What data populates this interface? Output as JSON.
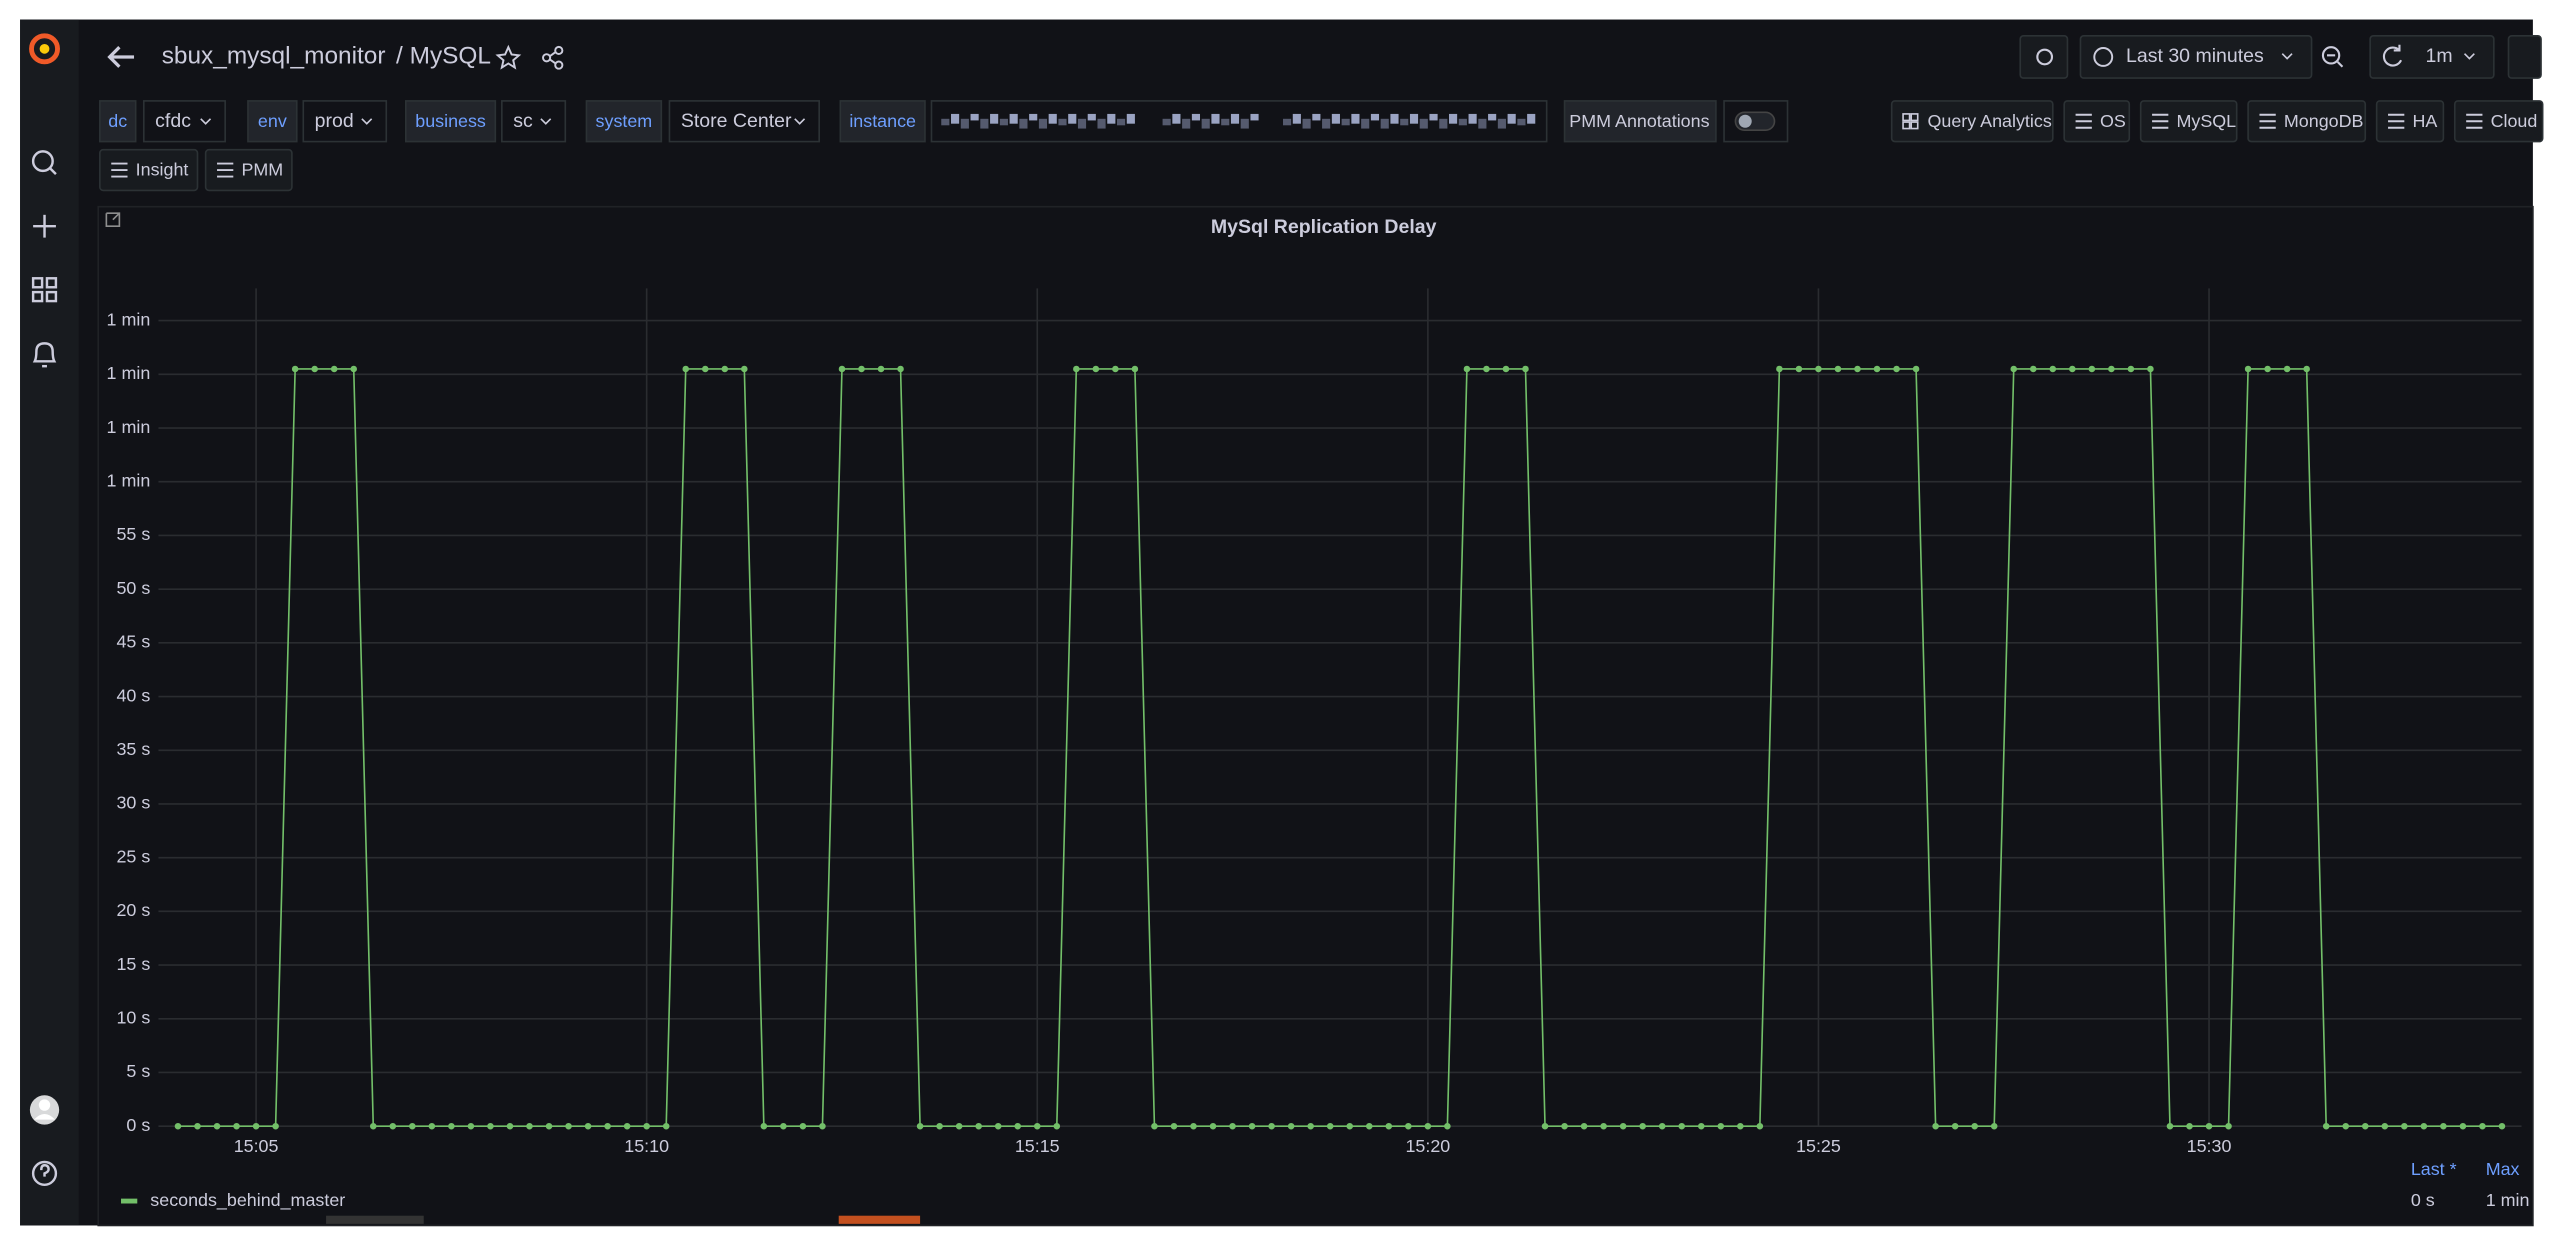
{
  "header": {
    "title": "sbux_mysql_monitor",
    "subtitle": "/ MySQL"
  },
  "time_picker": {
    "range": "Last 30 minutes",
    "refresh": "1m"
  },
  "variables": [
    {
      "label": "dc",
      "value": "cfdc"
    },
    {
      "label": "env",
      "value": "prod"
    },
    {
      "label": "business",
      "value": "sc"
    },
    {
      "label": "system",
      "value": "Store Center"
    },
    {
      "label": "instance"
    }
  ],
  "toggle_label": "PMM Annotations",
  "links": [
    "Query Analytics",
    "OS",
    "MySQL",
    "MongoDB",
    "HA",
    "Cloud",
    "Insight",
    "PMM"
  ],
  "chart_data": {
    "type": "line",
    "title": "MySql Replication Delay",
    "x": [
      "15:04:00",
      "15:04:15",
      "15:04:30",
      "15:04:45",
      "15:05:00",
      "15:05:15",
      "15:05:30",
      "15:05:45",
      "15:06:00",
      "15:06:15",
      "15:06:30",
      "15:06:45",
      "15:07:00",
      "15:07:15",
      "15:07:30",
      "15:07:45",
      "15:08:00",
      "15:08:15",
      "15:08:30",
      "15:08:45",
      "15:09:00",
      "15:09:15",
      "15:09:30",
      "15:09:45",
      "15:10:00",
      "15:10:15",
      "15:10:30",
      "15:10:45",
      "15:11:00",
      "15:11:15",
      "15:11:30",
      "15:11:45",
      "15:12:00",
      "15:12:15",
      "15:12:30",
      "15:12:45",
      "15:13:00",
      "15:13:15",
      "15:13:30",
      "15:13:45",
      "15:14:00",
      "15:14:15",
      "15:14:30",
      "15:14:45",
      "15:15:00",
      "15:15:15",
      "15:15:30",
      "15:15:45",
      "15:16:00",
      "15:16:15",
      "15:16:30",
      "15:16:45",
      "15:17:00",
      "15:17:15",
      "15:17:30",
      "15:17:45",
      "15:18:00",
      "15:18:15",
      "15:18:30",
      "15:18:45",
      "15:19:00",
      "15:19:15",
      "15:19:30",
      "15:19:45",
      "15:20:00",
      "15:20:15",
      "15:20:30",
      "15:20:45",
      "15:21:00",
      "15:21:15",
      "15:21:30",
      "15:21:45",
      "15:22:00",
      "15:22:15",
      "15:22:30",
      "15:22:45",
      "15:23:00",
      "15:23:15",
      "15:23:30",
      "15:23:45",
      "15:24:00",
      "15:24:15",
      "15:24:30",
      "15:24:45",
      "15:25:00",
      "15:25:15",
      "15:25:30",
      "15:25:45",
      "15:26:00",
      "15:26:15",
      "15:26:30",
      "15:26:45",
      "15:27:00",
      "15:27:15",
      "15:27:30",
      "15:27:45",
      "15:28:00",
      "15:28:15",
      "15:28:30",
      "15:28:45",
      "15:29:00",
      "15:29:15",
      "15:29:30",
      "15:29:45",
      "15:30:00",
      "15:30:15",
      "15:30:30",
      "15:30:45",
      "15:31:00",
      "15:31:15",
      "15:31:30",
      "15:31:45",
      "15:32:00",
      "15:32:15",
      "15:32:30",
      "15:32:45",
      "15:33:00",
      "15:33:15",
      "15:33:30",
      "15:33:45"
    ],
    "series": [
      {
        "name": "seconds_behind_master",
        "color": "#73bf69",
        "values": [
          0,
          0,
          0,
          0,
          0,
          0,
          70.5,
          70.5,
          70.5,
          70.5,
          0,
          0,
          0,
          0,
          0,
          0,
          0,
          0,
          0,
          0,
          0,
          0,
          0,
          0,
          0,
          0,
          70.5,
          70.5,
          70.5,
          70.5,
          0,
          0,
          0,
          0,
          70.5,
          70.5,
          70.5,
          70.5,
          0,
          0,
          0,
          0,
          0,
          0,
          0,
          0,
          70.5,
          70.5,
          70.5,
          70.5,
          0,
          0,
          0,
          0,
          0,
          0,
          0,
          0,
          0,
          0,
          0,
          0,
          0,
          0,
          0,
          0,
          70.5,
          70.5,
          70.5,
          70.5,
          0,
          0,
          0,
          0,
          0,
          0,
          0,
          0,
          0,
          0,
          0,
          0,
          70.5,
          70.5,
          70.5,
          70.5,
          70.5,
          70.5,
          70.5,
          70.5,
          0,
          0,
          0,
          0,
          70.5,
          70.5,
          70.5,
          70.5,
          70.5,
          70.5,
          70.5,
          70.5,
          0,
          0,
          0,
          0,
          70.5,
          70.5,
          70.5,
          70.5,
          0,
          0,
          0,
          0,
          0,
          0,
          0,
          0,
          0,
          0
        ],
        "stats": [
          "0 s",
          "1 min"
        ]
      }
    ],
    "legend_columns": [
      "Last *",
      "Max"
    ],
    "xlim": [
      "15:03:45",
      "15:34:00"
    ],
    "xticks": [
      {
        "value": "15:05:00",
        "label": "15:05"
      },
      {
        "value": "15:10:00",
        "label": "15:10"
      },
      {
        "value": "15:15:00",
        "label": "15:15"
      },
      {
        "value": "15:20:00",
        "label": "15:20"
      },
      {
        "value": "15:25:00",
        "label": "15:25"
      },
      {
        "value": "15:30:00",
        "label": "15:30"
      }
    ],
    "ylim": [
      0,
      78
    ],
    "yticks": [
      {
        "value": 0,
        "label": "0 s"
      },
      {
        "value": 5,
        "label": "5 s"
      },
      {
        "value": 10,
        "label": "10 s"
      },
      {
        "value": 15,
        "label": "15 s"
      },
      {
        "value": 20,
        "label": "20 s"
      },
      {
        "value": 25,
        "label": "25 s"
      },
      {
        "value": 30,
        "label": "30 s"
      },
      {
        "value": 35,
        "label": "35 s"
      },
      {
        "value": 40,
        "label": "40 s"
      },
      {
        "value": 45,
        "label": "45 s"
      },
      {
        "value": 50,
        "label": "50 s"
      },
      {
        "value": 55,
        "label": "55 s"
      },
      {
        "value": 60,
        "label": "1 min"
      },
      {
        "value": 65,
        "label": "1 min"
      },
      {
        "value": 70,
        "label": "1 min"
      },
      {
        "value": 75,
        "label": "1 min"
      }
    ],
    "grid": true
  }
}
